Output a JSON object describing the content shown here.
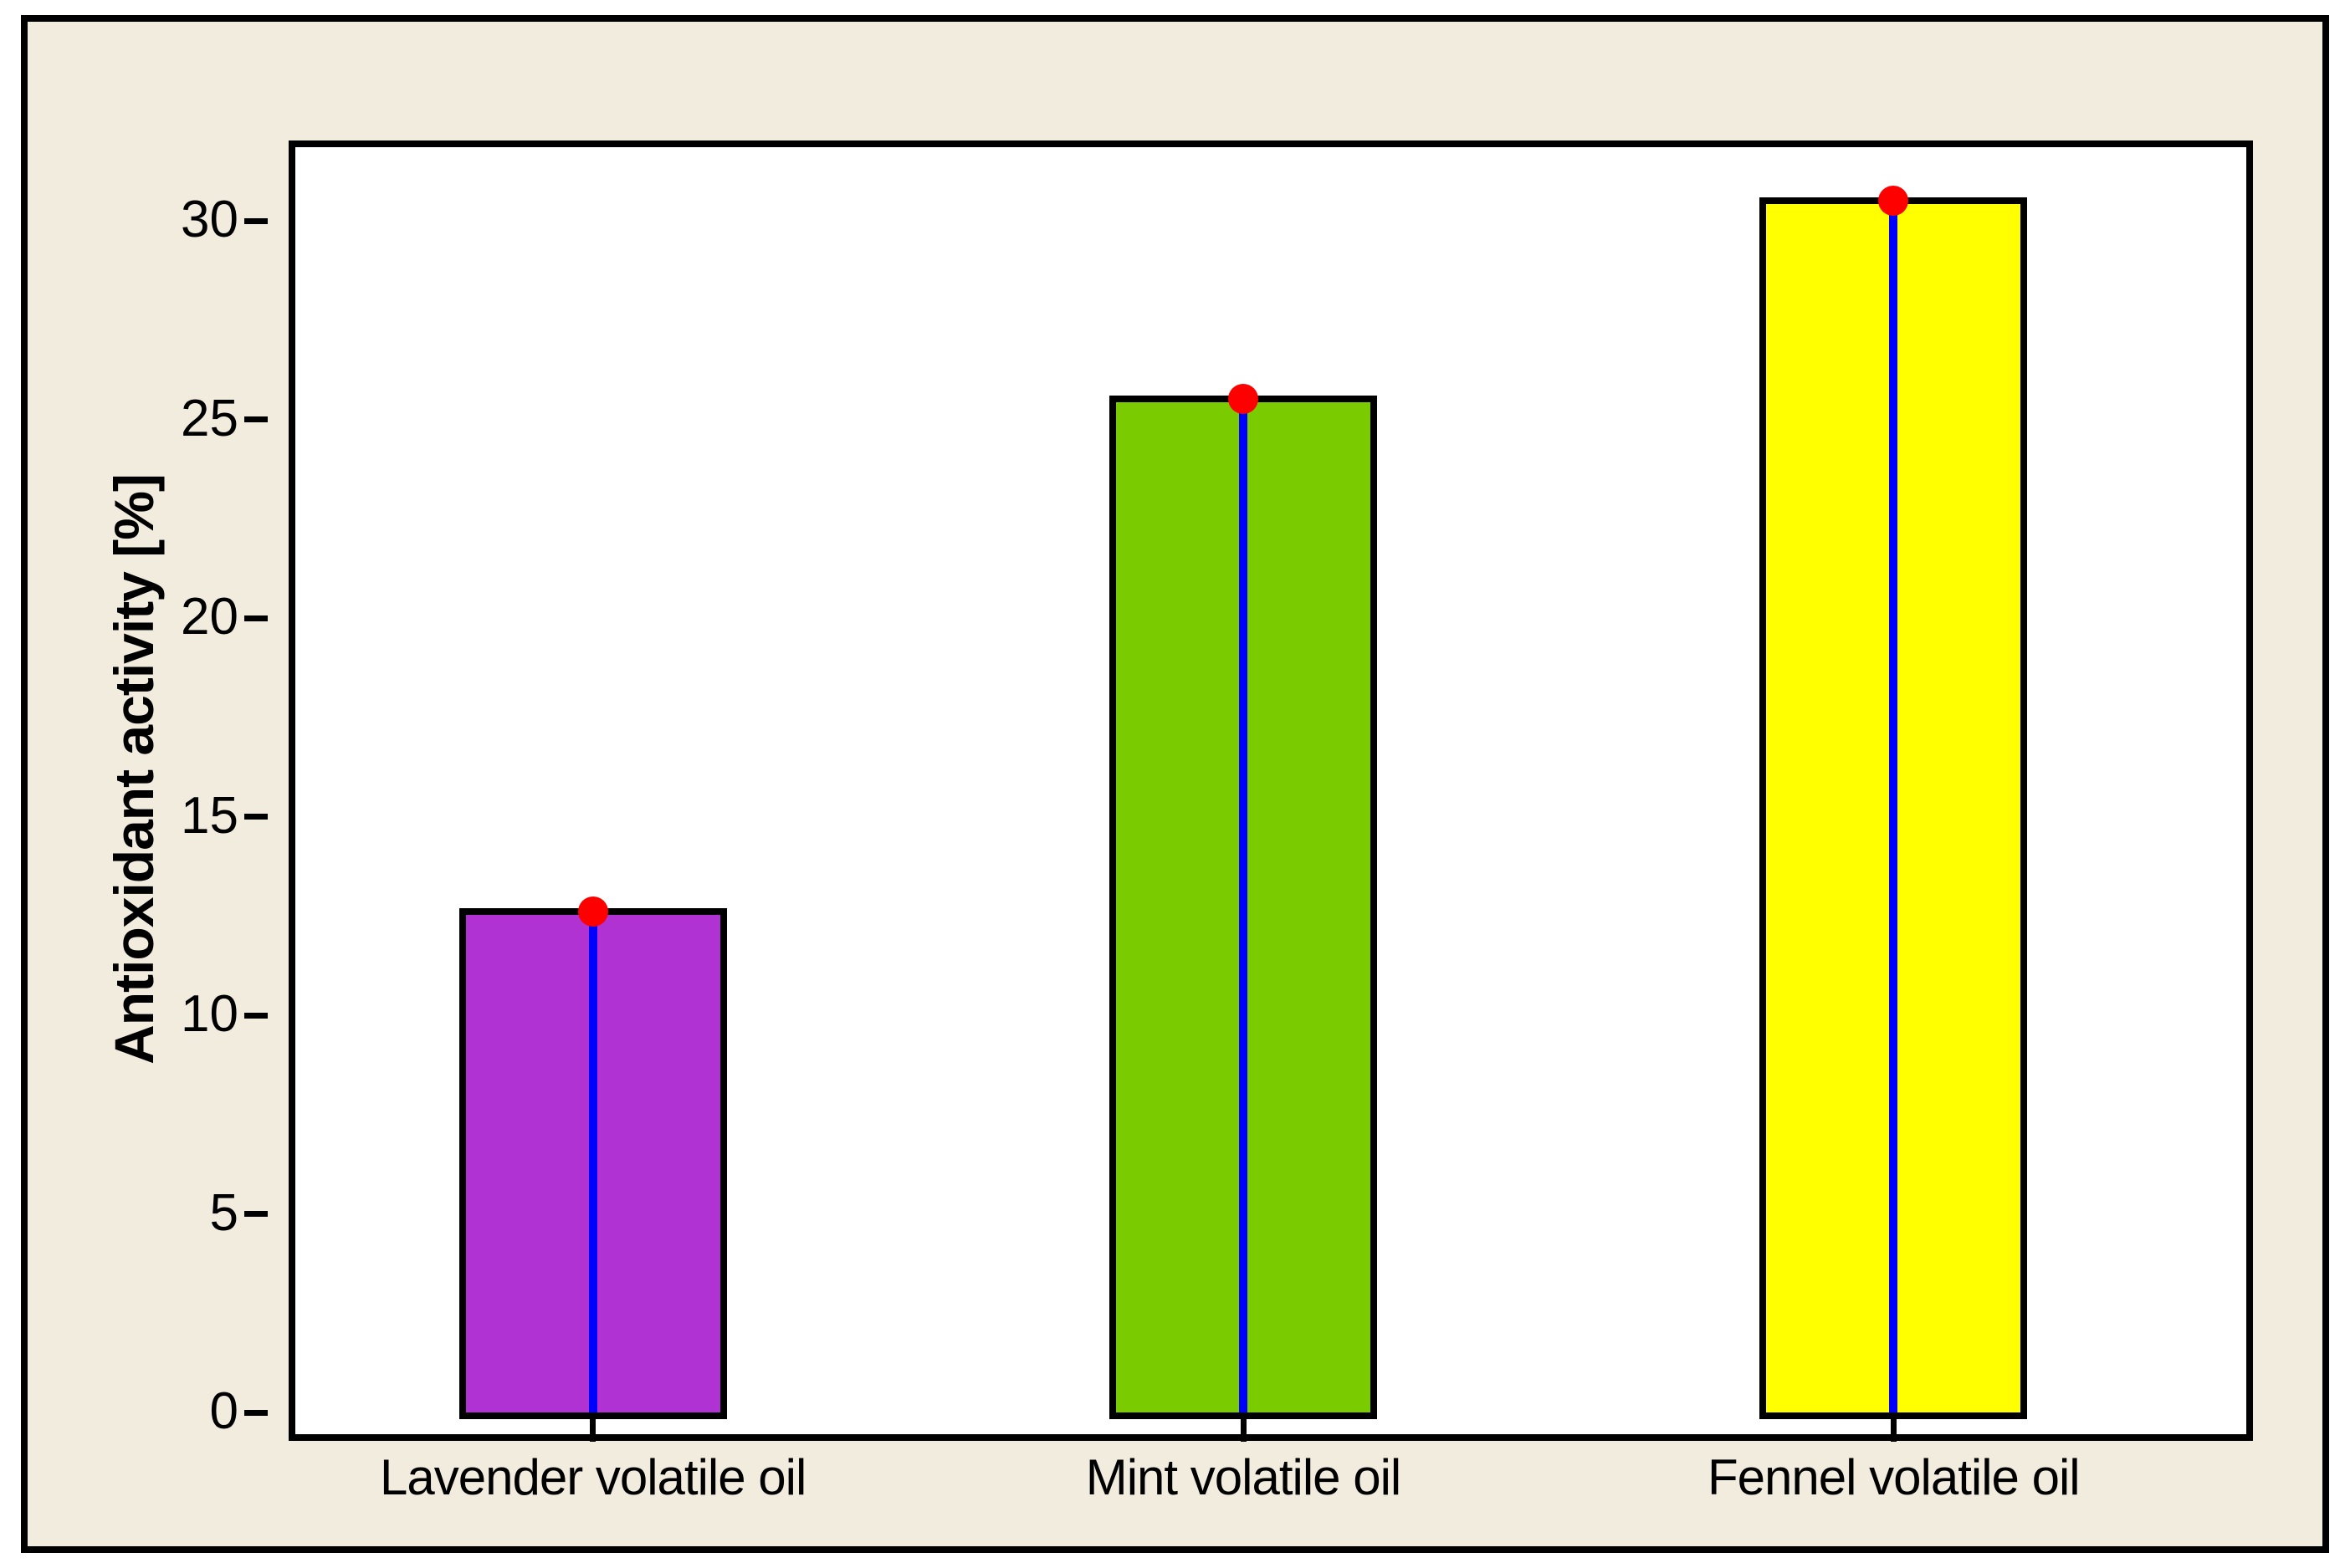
{
  "chart_data": {
    "type": "bar",
    "categories": [
      "Lavender volatile oil",
      "Mint volatile oil",
      "Fennel volatile oil"
    ],
    "values": [
      12.7,
      25.6,
      30.6
    ],
    "title": "",
    "xlabel": "",
    "ylabel": "Antioxidant activity [%]",
    "yticks": [
      0,
      5,
      10,
      15,
      20,
      25,
      30
    ],
    "ylim": [
      0,
      32.4
    ],
    "grid": false,
    "legend": false,
    "bar_colors": [
      "#B032D2",
      "#7ACC00",
      "#FFFF00"
    ],
    "bar_border_color": "#000000",
    "point_color": "#FF0000",
    "stem_color": "#0000FF",
    "plot_bg": "#FFFFFF",
    "outer_bg": "#F2ECDF",
    "axis_color": "#000000"
  }
}
